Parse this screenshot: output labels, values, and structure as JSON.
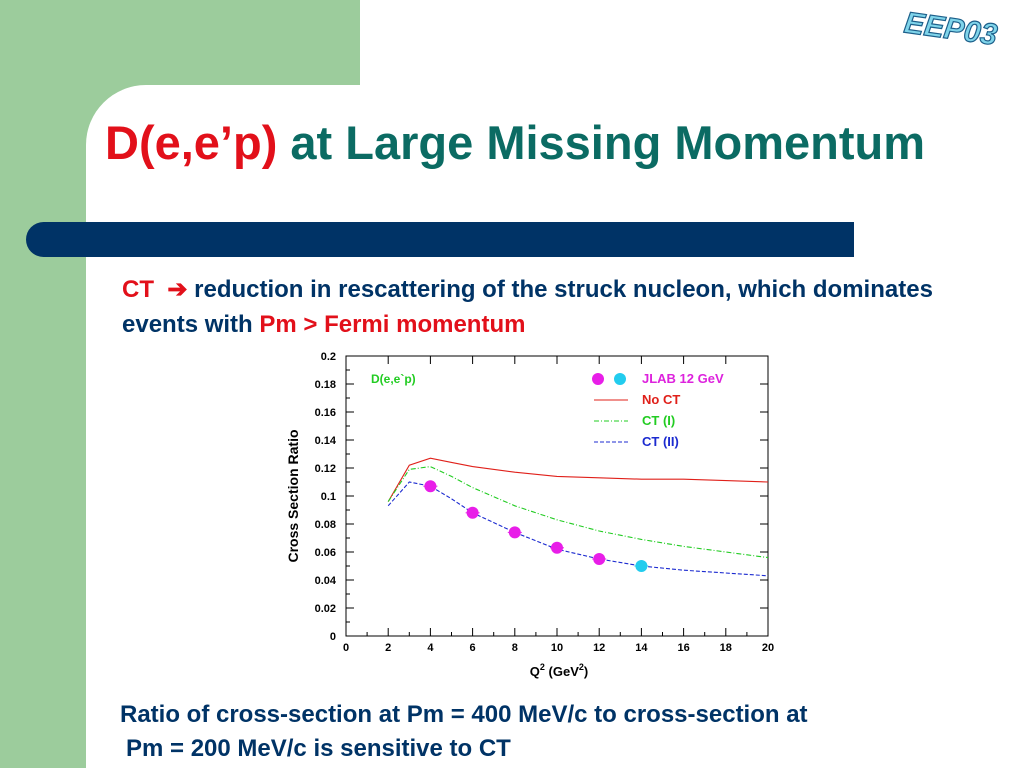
{
  "slide": {
    "title_red": "D(e,e’p)",
    "title_teal": "at Large Missing Momentum",
    "logo_text": "EEP03",
    "bullet": {
      "ct": "CT",
      "arrow": "➔",
      "text_blue": "reduction in rescattering of the struck nucleon, which dominates events with",
      "text_red": "Pm > Fermi momentum"
    },
    "caption": {
      "line1": "Ratio of cross-section at Pm = 400 MeV/c  to cross-section at",
      "line2": "Pm = 200 MeV/c is sensitive to CT"
    },
    "colors": {
      "green_band": "#9ccc9c",
      "title_red": "#e2101a",
      "title_teal": "#0b6b63",
      "dark_blue": "#003366"
    }
  },
  "chart_data": {
    "type": "line",
    "annotation": "D(e,e`p)",
    "xlabel": "Q",
    "xlabel_sup1": "2",
    "xlabel_mid": " (GeV",
    "xlabel_sup2": "2",
    "xlabel_end": ")",
    "ylabel": "Cross Section Ratio",
    "xlim": [
      0,
      20
    ],
    "ylim": [
      0,
      0.2
    ],
    "x_ticks": [
      0,
      2,
      4,
      6,
      8,
      10,
      12,
      14,
      16,
      18,
      20
    ],
    "x_tick_labels": [
      "0",
      "2",
      "4",
      "6",
      "8",
      "10",
      "12",
      "14",
      "16",
      "18",
      "20"
    ],
    "y_ticks": [
      0,
      0.02,
      0.04,
      0.06,
      0.08,
      0.1,
      0.12,
      0.14,
      0.16,
      0.18,
      0.2
    ],
    "y_tick_labels": [
      "0",
      "0.02",
      "0.04",
      "0.06",
      "0.08",
      "0.1",
      "0.12",
      "0.14",
      "0.16",
      "0.18",
      "0.2"
    ],
    "grid": false,
    "legend_position": "top-right",
    "series": [
      {
        "name": "No CT",
        "style": "solid",
        "color": "#e0201a",
        "x": [
          2,
          3,
          4,
          5,
          6,
          8,
          10,
          12,
          14,
          16,
          18,
          20
        ],
        "y": [
          0.096,
          0.122,
          0.127,
          0.124,
          0.121,
          0.117,
          0.114,
          0.113,
          0.112,
          0.112,
          0.111,
          0.11
        ]
      },
      {
        "name": "CT (I)",
        "style": "dashdot",
        "color": "#22cc22",
        "x": [
          2,
          3,
          4,
          5,
          6,
          8,
          10,
          12,
          14,
          16,
          18,
          20
        ],
        "y": [
          0.096,
          0.119,
          0.121,
          0.114,
          0.106,
          0.093,
          0.083,
          0.075,
          0.069,
          0.064,
          0.06,
          0.056
        ]
      },
      {
        "name": "CT (II)",
        "style": "dashed",
        "color": "#1c2bd0",
        "x": [
          2,
          3,
          4,
          5,
          6,
          8,
          10,
          12,
          14,
          16,
          18,
          20
        ],
        "y": [
          0.093,
          0.11,
          0.107,
          0.098,
          0.088,
          0.074,
          0.062,
          0.055,
          0.05,
          0.047,
          0.045,
          0.043
        ]
      }
    ],
    "points": {
      "name": "JLAB 12 GeV",
      "color_main": "#e81ee8",
      "color_alt": "#22ccee",
      "legend_color": "#dd22dd",
      "x": [
        4,
        6,
        8,
        10,
        12,
        14
      ],
      "y": [
        0.107,
        0.088,
        0.074,
        0.063,
        0.055,
        0.05
      ],
      "alt_flags": [
        false,
        false,
        false,
        false,
        false,
        true
      ]
    }
  }
}
